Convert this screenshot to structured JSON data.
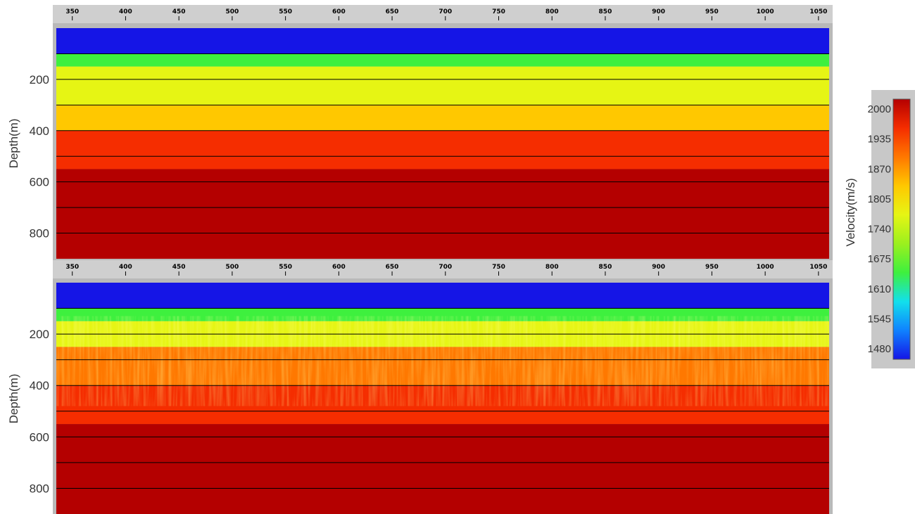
{
  "chart_data": [
    {
      "type": "heatmap",
      "title": "",
      "xlabel": "",
      "ylabel": "Depth(m)",
      "x_ticks": [
        "350",
        "400",
        "450",
        "500",
        "550",
        "600",
        "650",
        "700",
        "750",
        "800",
        "850",
        "900",
        "950",
        "1000",
        "1050"
      ],
      "y_ticks": [
        "200",
        "400",
        "600",
        "800"
      ],
      "xlim": [
        335,
        1060
      ],
      "ylim": [
        900,
        0
      ],
      "grid": true,
      "grid_depths": [
        100,
        200,
        300,
        400,
        500,
        600,
        700,
        800
      ],
      "layers": [
        {
          "depth_top": 0,
          "depth_bottom": 100,
          "velocity": 1480
        },
        {
          "depth_top": 100,
          "depth_bottom": 150,
          "velocity": 1650
        },
        {
          "depth_top": 150,
          "depth_bottom": 300,
          "velocity": 1750
        },
        {
          "depth_top": 300,
          "depth_bottom": 400,
          "velocity": 1820
        },
        {
          "depth_top": 400,
          "depth_bottom": 550,
          "velocity": 1920
        },
        {
          "depth_top": 550,
          "depth_bottom": 900,
          "velocity": 2000
        }
      ]
    },
    {
      "type": "heatmap",
      "title": "",
      "xlabel": "",
      "ylabel": "Depth(m)",
      "x_ticks": [
        "350",
        "400",
        "450",
        "500",
        "550",
        "600",
        "650",
        "700",
        "750",
        "800",
        "850",
        "900",
        "950",
        "1000",
        "1050"
      ],
      "y_ticks": [
        "200",
        "400",
        "600",
        "800"
      ],
      "xlim": [
        335,
        1060
      ],
      "ylim": [
        900,
        0
      ],
      "grid": true,
      "grid_depths": [
        100,
        200,
        300,
        400,
        500,
        600,
        700,
        800
      ],
      "layers": [
        {
          "depth_top": 0,
          "depth_bottom": 100,
          "velocity": 1480
        },
        {
          "depth_top": 100,
          "depth_bottom": 150,
          "velocity": 1650
        },
        {
          "depth_top": 150,
          "depth_bottom": 250,
          "velocity": 1780
        },
        {
          "depth_top": 250,
          "depth_bottom": 400,
          "velocity": 1860
        },
        {
          "depth_top": 400,
          "depth_bottom": 550,
          "velocity": 1930
        },
        {
          "depth_top": 550,
          "depth_bottom": 900,
          "velocity": 1990
        }
      ]
    }
  ],
  "colorbar": {
    "label": "Velocity(m/s)",
    "ticks": [
      "2000",
      "1935",
      "1870",
      "1805",
      "1740",
      "1675",
      "1610",
      "1545",
      "1480"
    ],
    "range": [
      1480,
      2000
    ],
    "colors": [
      "#1515e6",
      "#0f82ff",
      "#12e0ec",
      "#3ef03e",
      "#9bf01e",
      "#e6f514",
      "#ffc800",
      "#ff7800",
      "#f52d00",
      "#b40000"
    ]
  }
}
